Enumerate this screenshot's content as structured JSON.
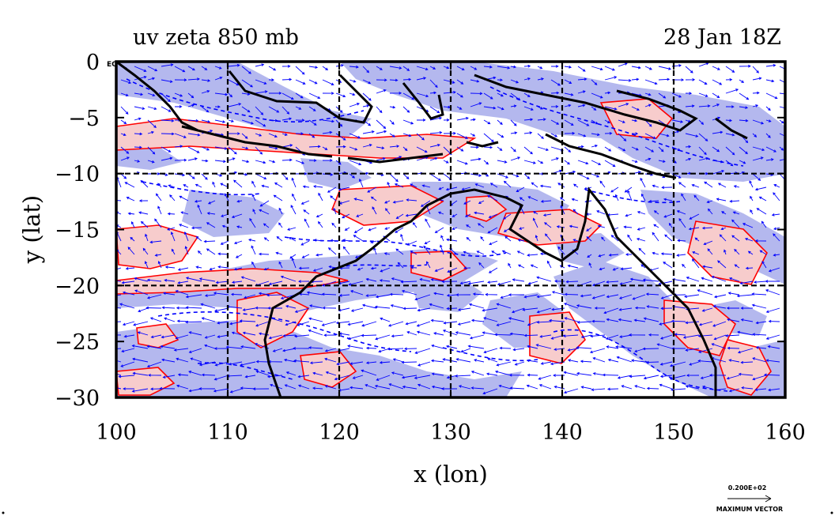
{
  "title_left": "uv zeta 850 mb",
  "title_right": "28 Jan 18Z",
  "x_axis": {
    "label": "x (lon)",
    "range": [
      100,
      160
    ],
    "ticks": [
      100,
      110,
      120,
      130,
      140,
      150,
      160
    ],
    "tick_labels": [
      "100",
      "110",
      "120",
      "130",
      "140",
      "150",
      "160"
    ]
  },
  "y_axis": {
    "label": "y (lat)",
    "range": [
      -30,
      0
    ],
    "ticks": [
      0,
      -5,
      -10,
      -15,
      -20,
      -25,
      -30
    ],
    "tick_labels": [
      "0",
      "−5",
      "−10",
      "−15",
      "−20",
      "−25",
      "−30"
    ],
    "equator_label": "EQ"
  },
  "grid": {
    "lon_lines": [
      110,
      120,
      130,
      140,
      150
    ],
    "lat_lines": [
      -10,
      -20
    ]
  },
  "vector_key": {
    "value_label": "0.200E+02",
    "caption": "MAXIMUM VECTOR"
  },
  "colors": {
    "positive_fill": "#f7cccc",
    "positive_contour": "#ff0000",
    "negative_fill": "#b4b8ee",
    "negative_contour": "#0000ff",
    "vectors": "#0000ff",
    "coastline": "#000000"
  }
}
